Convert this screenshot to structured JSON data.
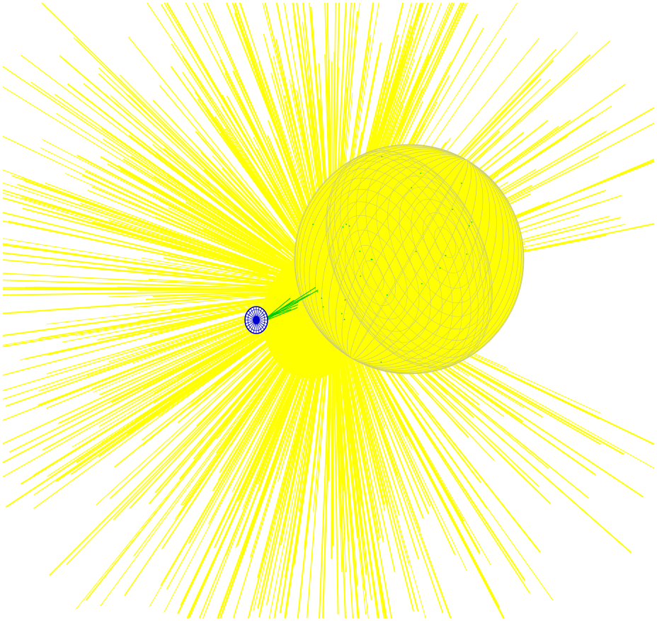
{
  "scene": {
    "background_color": "#ffffff",
    "ray_color": "#ffff00",
    "sphere_fill_color": "#ffff00",
    "sphere_mesh_color": "#a8a8d0",
    "hit_point_color": "#00dd00",
    "detector_color": "#0000cc",
    "trajectory_color": "#00cc00",
    "objects": [
      "ray-burst",
      "target-sphere",
      "particle-trajectories",
      "detector-disk"
    ]
  }
}
